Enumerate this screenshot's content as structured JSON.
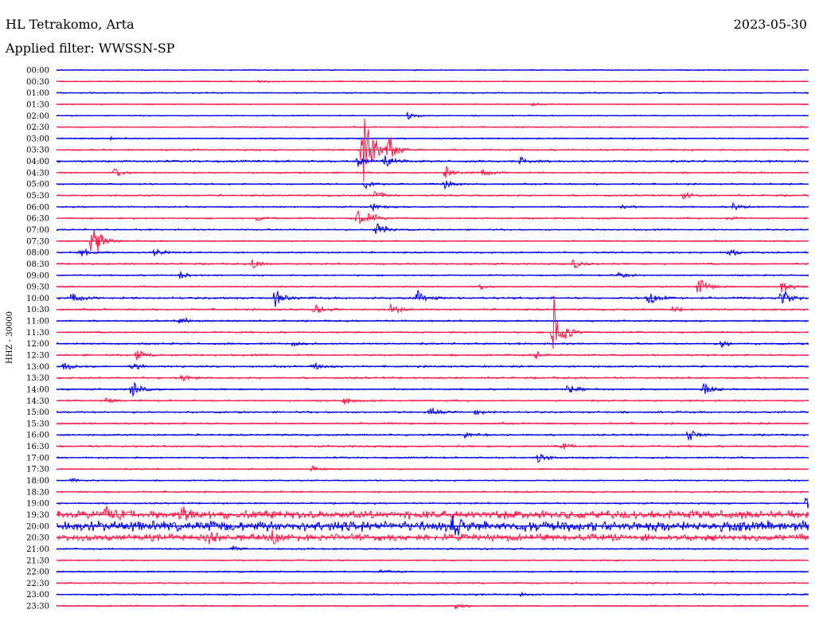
{
  "header": {
    "station": "HL Tetrakomo, Arta",
    "date": "2023-05-30",
    "filter": "Applied filter: WWSSN-SP"
  },
  "chart_data": {
    "type": "line",
    "title": "HL Tetrakomo, Arta",
    "subtitle": "Applied filter: WWSSN-SP",
    "ylabel": "HHZ - 30000",
    "date": "2023-05-30",
    "colors": [
      "#0000e6",
      "#ff1a4b"
    ],
    "row_labels": [
      "00:00",
      "00:30",
      "01:00",
      "01:30",
      "02:00",
      "02:30",
      "03:00",
      "03:30",
      "04:00",
      "04:30",
      "05:00",
      "05:30",
      "06:00",
      "06:30",
      "07:00",
      "07:30",
      "08:00",
      "08:30",
      "09:00",
      "09:30",
      "10:00",
      "10:30",
      "11:00",
      "11:30",
      "12:00",
      "12:30",
      "13:00",
      "13:30",
      "14:00",
      "14:30",
      "15:00",
      "15:30",
      "16:00",
      "16:30",
      "17:00",
      "17:30",
      "18:00",
      "18:30",
      "19:00",
      "19:30",
      "20:00",
      "20:30",
      "21:00",
      "21:30",
      "22:00",
      "22:30",
      "23:00",
      "23:30"
    ],
    "row_minutes": 30,
    "noise": [
      0.7,
      0.7,
      0.8,
      0.7,
      0.7,
      0.8,
      0.8,
      1.0,
      1.2,
      1.0,
      1.0,
      1.0,
      0.9,
      1.0,
      0.9,
      0.9,
      1.0,
      1.0,
      0.9,
      0.9,
      1.3,
      1.1,
      1.0,
      1.0,
      1.1,
      1.1,
      1.1,
      1.1,
      1.0,
      1.0,
      1.1,
      1.1,
      1.1,
      1.1,
      1.0,
      0.9,
      0.8,
      1.0,
      1.0,
      5.0,
      6.0,
      4.0,
      1.0,
      0.9,
      0.9,
      0.9,
      1.0,
      0.9
    ],
    "events": [
      {
        "row": 1,
        "minute": 8.0,
        "amp": 1.5
      },
      {
        "row": 3,
        "minute": 19.0,
        "amp": 3
      },
      {
        "row": 4,
        "minute": 14.0,
        "amp": 6
      },
      {
        "row": 6,
        "minute": 2.2,
        "amp": 3
      },
      {
        "row": 7,
        "minute": 12.2,
        "amp": 110
      },
      {
        "row": 7,
        "minute": 13.3,
        "amp": 9
      },
      {
        "row": 8,
        "minute": 12.0,
        "amp": 10
      },
      {
        "row": 8,
        "minute": 18.5,
        "amp": 6
      },
      {
        "row": 9,
        "minute": 2.3,
        "amp": 8
      },
      {
        "row": 9,
        "minute": 15.5,
        "amp": 10
      },
      {
        "row": 9,
        "minute": 17.0,
        "amp": 5
      },
      {
        "row": 10,
        "minute": 12.3,
        "amp": 10
      },
      {
        "row": 10,
        "minute": 15.5,
        "amp": 9
      },
      {
        "row": 11,
        "minute": 25.0,
        "amp": 6
      },
      {
        "row": 12,
        "minute": 22.5,
        "amp": 5
      },
      {
        "row": 12,
        "minute": 27.0,
        "amp": 6
      },
      {
        "row": 13,
        "minute": 8.0,
        "amp": 4
      },
      {
        "row": 13,
        "minute": 12.0,
        "amp": 12
      },
      {
        "row": 13,
        "minute": 26.8,
        "amp": 4
      },
      {
        "row": 15,
        "minute": 1.4,
        "amp": 40
      },
      {
        "row": 16,
        "minute": 0.9,
        "amp": 9
      },
      {
        "row": 16,
        "minute": 3.9,
        "amp": 6
      },
      {
        "row": 16,
        "minute": 26.8,
        "amp": 8
      },
      {
        "row": 17,
        "minute": 7.8,
        "amp": 8
      },
      {
        "row": 17,
        "minute": 20.6,
        "amp": 8
      },
      {
        "row": 18,
        "minute": 4.9,
        "amp": 6
      },
      {
        "row": 18,
        "minute": 22.4,
        "amp": 6
      },
      {
        "row": 19,
        "minute": 16.9,
        "amp": 4
      },
      {
        "row": 19,
        "minute": 25.6,
        "amp": 16
      },
      {
        "row": 19,
        "minute": 28.9,
        "amp": 12
      },
      {
        "row": 20,
        "minute": 0.6,
        "amp": 7
      },
      {
        "row": 20,
        "minute": 8.7,
        "amp": 12
      },
      {
        "row": 20,
        "minute": 14.4,
        "amp": 10
      },
      {
        "row": 20,
        "minute": 23.6,
        "amp": 14
      },
      {
        "row": 20,
        "minute": 28.9,
        "amp": 16
      },
      {
        "row": 21,
        "minute": 10.3,
        "amp": 10
      },
      {
        "row": 21,
        "minute": 13.3,
        "amp": 10
      },
      {
        "row": 21,
        "minute": 24.6,
        "amp": 7
      },
      {
        "row": 22,
        "minute": 4.9,
        "amp": 7
      },
      {
        "row": 23,
        "minute": 19.8,
        "amp": 60
      },
      {
        "row": 24,
        "minute": 9.4,
        "amp": 4
      },
      {
        "row": 24,
        "minute": 26.5,
        "amp": 5
      },
      {
        "row": 25,
        "minute": 3.2,
        "amp": 8
      },
      {
        "row": 25,
        "minute": 19.1,
        "amp": 6
      },
      {
        "row": 26,
        "minute": 0.3,
        "amp": 8
      },
      {
        "row": 26,
        "minute": 3.0,
        "amp": 8
      },
      {
        "row": 26,
        "minute": 10.2,
        "amp": 6
      },
      {
        "row": 27,
        "minute": 5.0,
        "amp": 5
      },
      {
        "row": 28,
        "minute": 3.0,
        "amp": 14
      },
      {
        "row": 28,
        "minute": 20.4,
        "amp": 8
      },
      {
        "row": 28,
        "minute": 25.8,
        "amp": 10
      },
      {
        "row": 29,
        "minute": 1.9,
        "amp": 5
      },
      {
        "row": 29,
        "minute": 11.5,
        "amp": 6
      },
      {
        "row": 30,
        "minute": 14.9,
        "amp": 6
      },
      {
        "row": 30,
        "minute": 16.7,
        "amp": 4
      },
      {
        "row": 32,
        "minute": 16.3,
        "amp": 5
      },
      {
        "row": 32,
        "minute": 25.2,
        "amp": 10
      },
      {
        "row": 33,
        "minute": 20.2,
        "amp": 5
      },
      {
        "row": 34,
        "minute": 19.2,
        "amp": 9
      },
      {
        "row": 35,
        "minute": 10.2,
        "amp": 5
      },
      {
        "row": 36,
        "minute": 0.6,
        "amp": 3
      },
      {
        "row": 38,
        "minute": 29.9,
        "amp": 10
      },
      {
        "row": 39,
        "minute": 1.9,
        "amp": 10
      },
      {
        "row": 39,
        "minute": 4.9,
        "amp": 14
      },
      {
        "row": 40,
        "minute": 15.8,
        "amp": 16
      },
      {
        "row": 41,
        "minute": 6.0,
        "amp": 10
      },
      {
        "row": 41,
        "minute": 8.6,
        "amp": 9
      },
      {
        "row": 42,
        "minute": 7.0,
        "amp": 5
      },
      {
        "row": 44,
        "minute": 12.9,
        "amp": 4
      },
      {
        "row": 46,
        "minute": 18.5,
        "amp": 3
      },
      {
        "row": 47,
        "minute": 15.9,
        "amp": 6
      },
      {
        "row": 7,
        "minute": 13.2,
        "amp": 14
      },
      {
        "row": 8,
        "minute": 13.1,
        "amp": 12
      },
      {
        "row": 11,
        "minute": 12.7,
        "amp": 8
      },
      {
        "row": 12,
        "minute": 12.6,
        "amp": 6
      },
      {
        "row": 13,
        "minute": 12.5,
        "amp": 8
      },
      {
        "row": 14,
        "minute": 12.7,
        "amp": 18
      }
    ]
  }
}
